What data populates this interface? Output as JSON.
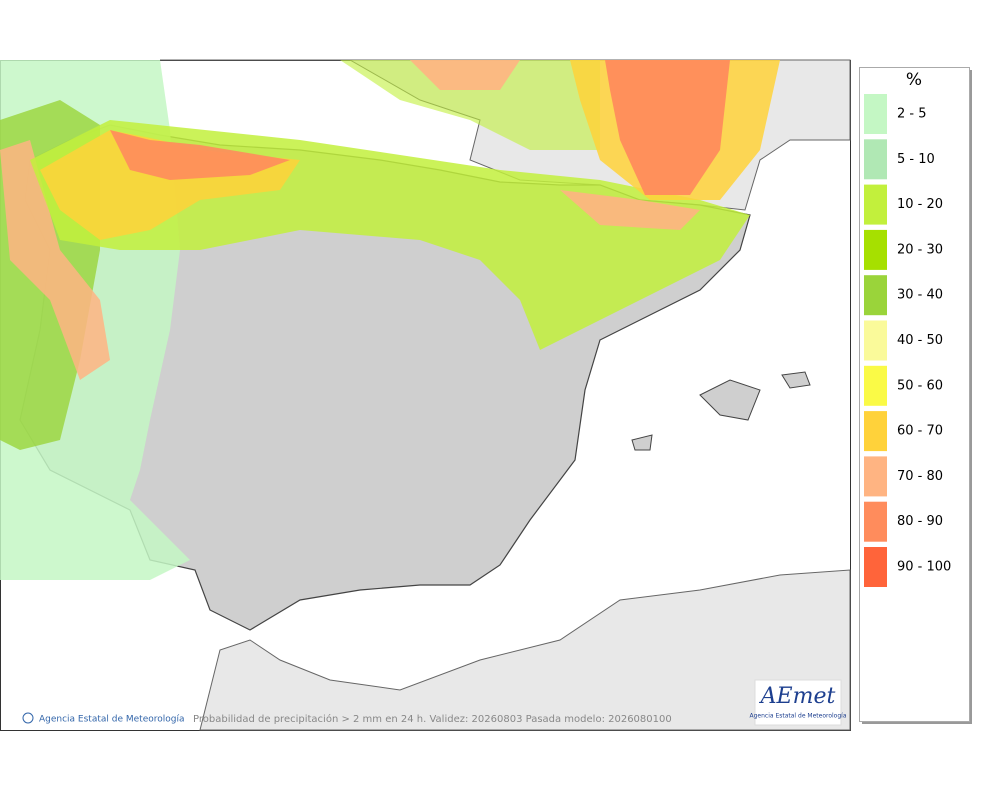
{
  "legend": {
    "title": "%",
    "entries": [
      {
        "label": "2 - 5",
        "color": "#c4f7c4"
      },
      {
        "label": "5 - 10",
        "color": "#b0e8b4"
      },
      {
        "label": "10 - 20",
        "color": "#c2f03c"
      },
      {
        "label": "20 - 30",
        "color": "#a6e000"
      },
      {
        "label": "30 - 40",
        "color": "#9ad43a"
      },
      {
        "label": "40 - 50",
        "color": "#fafa9a"
      },
      {
        "label": "50 - 60",
        "color": "#fafa46"
      },
      {
        "label": "60 - 70",
        "color": "#ffd23a"
      },
      {
        "label": "70 - 80",
        "color": "#ffb482"
      },
      {
        "label": "80 - 90",
        "color": "#ff8c5c"
      },
      {
        "label": "90 - 100",
        "color": "#ff643a"
      }
    ]
  },
  "footer": {
    "credit": "Agencia Estatal de Meteorología",
    "caption": "Probabilidad de precipitación > 2 mm en 24 h. Validez: 20260803 Pasada modelo: 2026080100"
  },
  "logo": {
    "name": "AEmet",
    "subtitle": "Agencia Estatal de Meteorología"
  }
}
